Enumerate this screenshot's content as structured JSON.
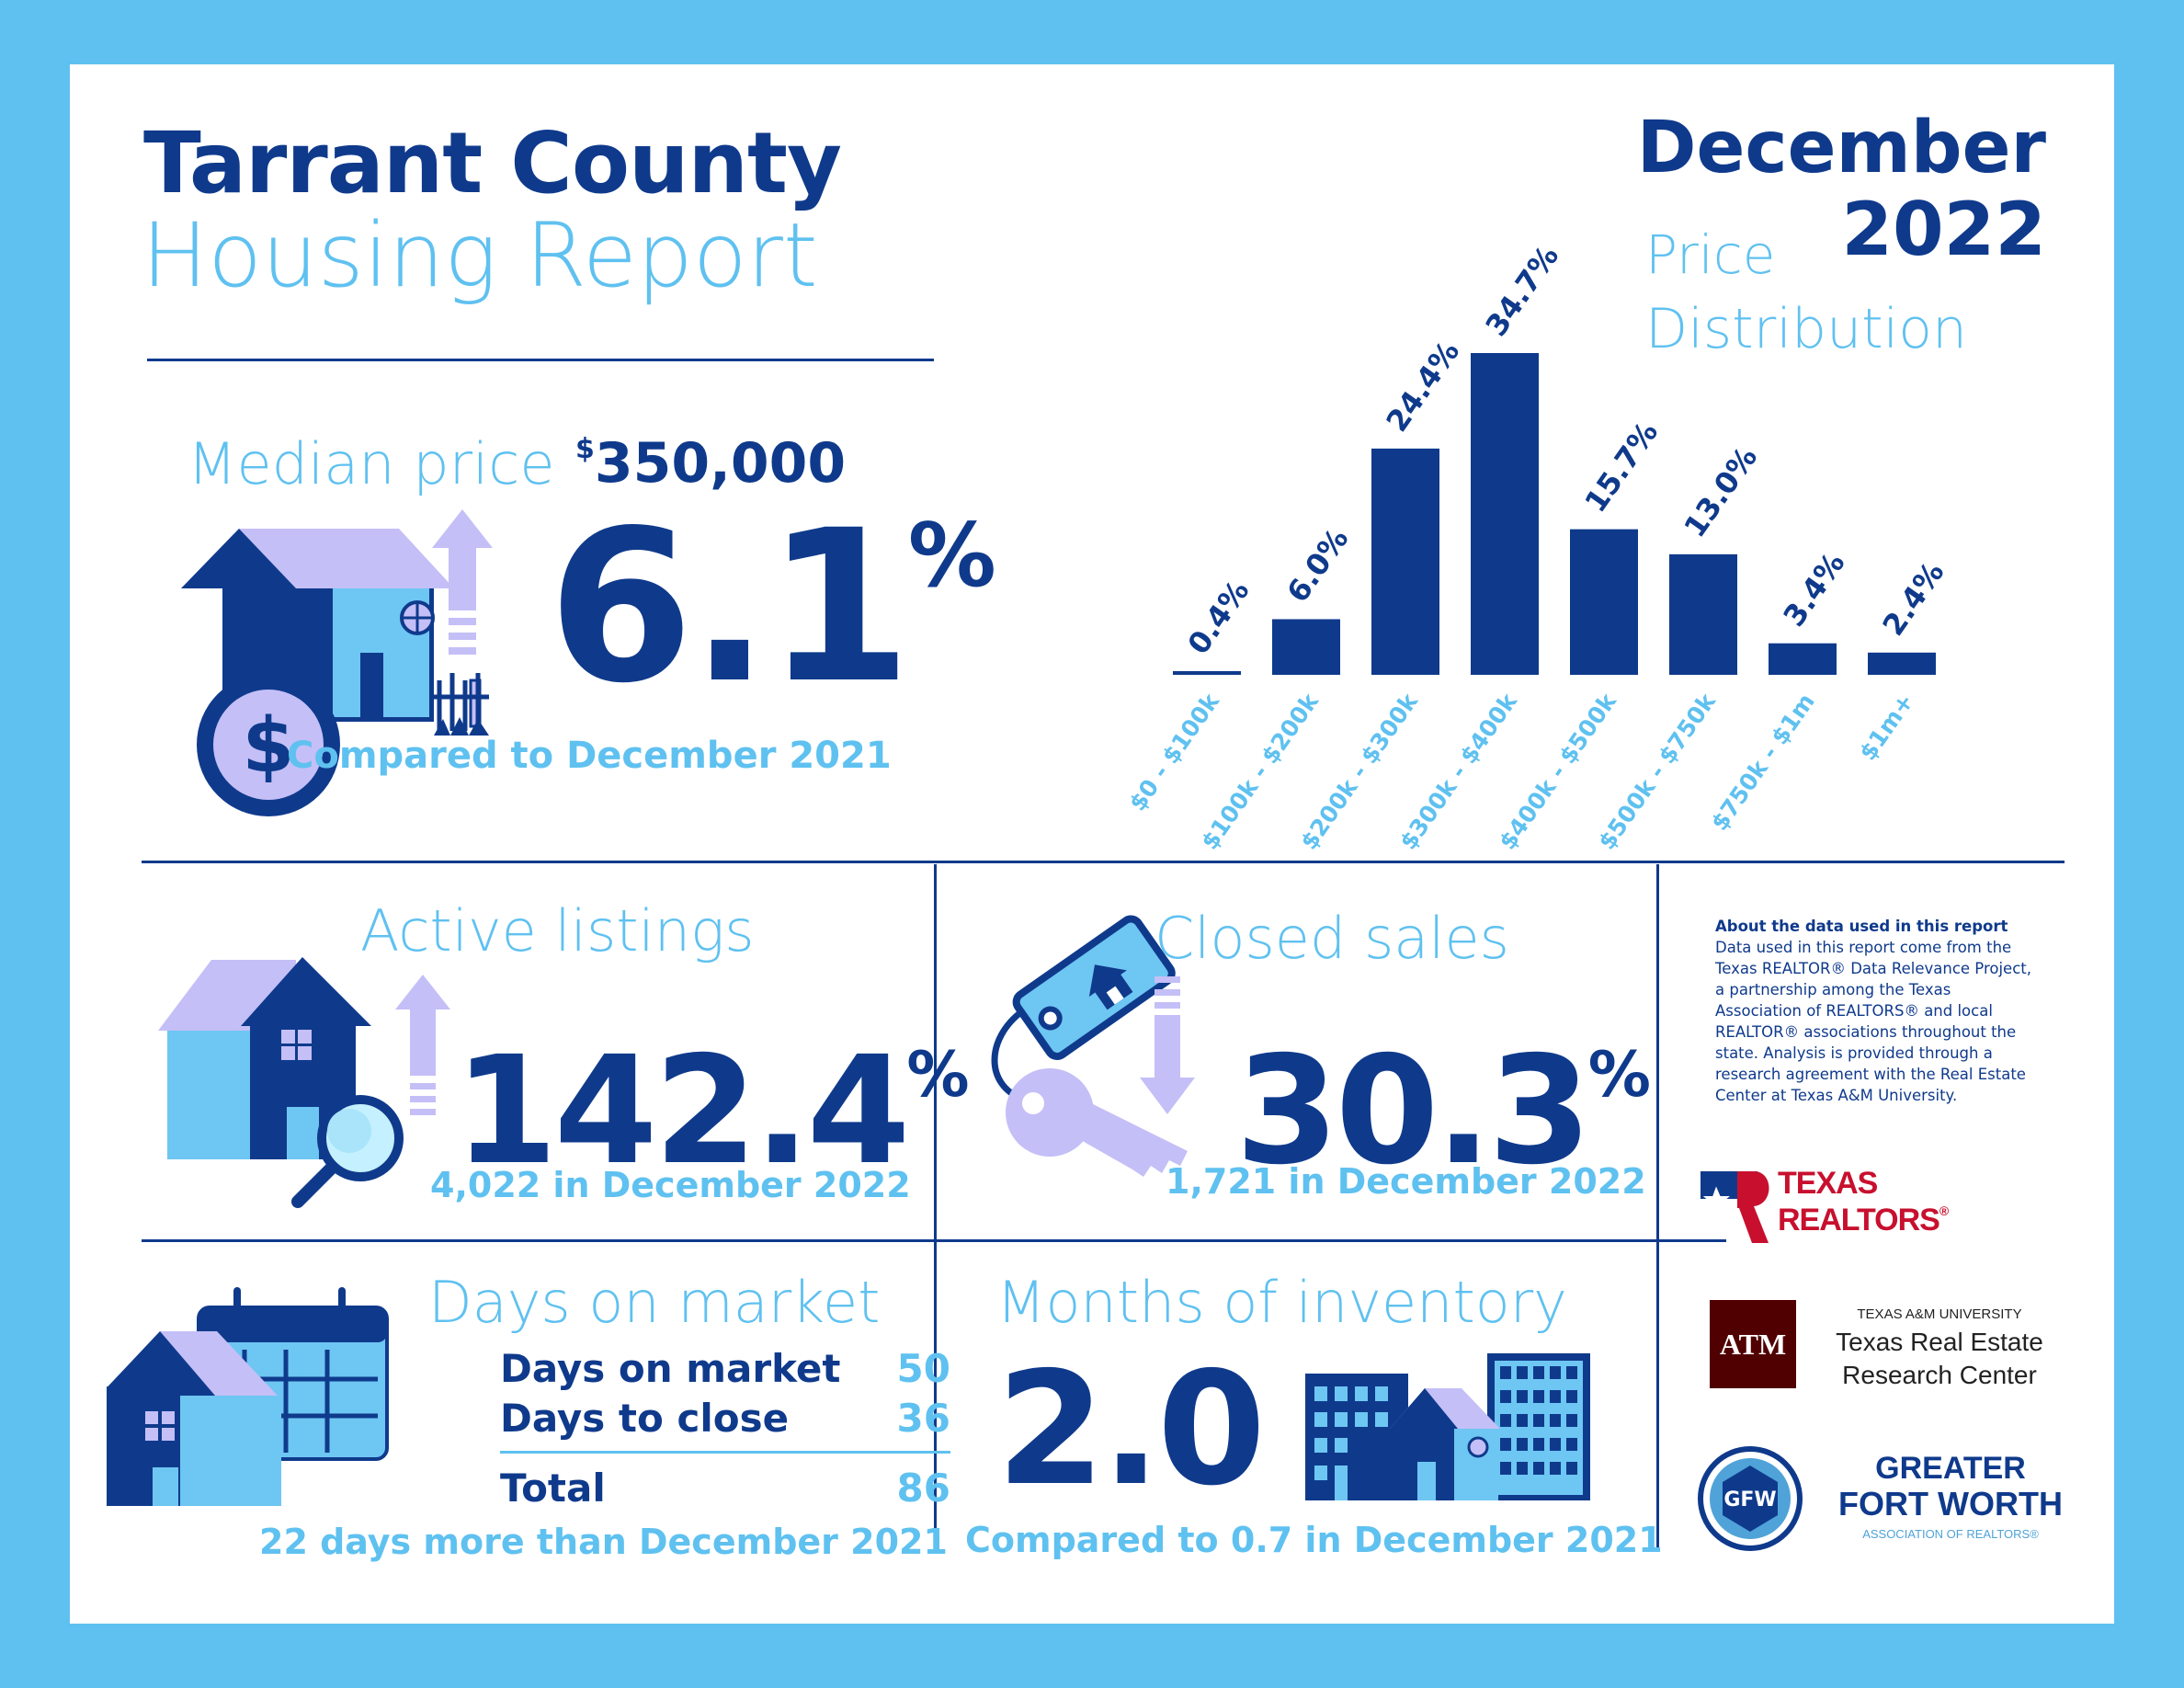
{
  "header": {
    "title_line1": "Tarrant County",
    "title_line2": "Housing Report",
    "month": "December",
    "year": "2022"
  },
  "median_price": {
    "label": "Median price",
    "dollar_sign": "$",
    "value": "350,000",
    "change": "6.1",
    "percent": "%",
    "direction": "up",
    "comparison": "Compared to December 2021"
  },
  "price_distribution": {
    "title_line1": "Price",
    "title_line2": "Distribution"
  },
  "chart_data": {
    "type": "bar",
    "title": "Price Distribution",
    "categories": [
      "$0 - $100k",
      "$100k - $200k",
      "$200k - $300k",
      "$300k - $400k",
      "$400k - $500k",
      "$500k - $750k",
      "$750k - $1m",
      "$1m+"
    ],
    "values": [
      0.4,
      6.0,
      24.4,
      34.7,
      15.7,
      13.0,
      3.4,
      2.4
    ],
    "value_labels": [
      "0.4%",
      "6.0%",
      "24.4%",
      "34.7%",
      "15.7%",
      "13.0%",
      "3.4%",
      "2.4%"
    ],
    "unit": "%",
    "ylim": [
      0,
      34.7
    ],
    "grid": false,
    "bar_color": "#0f3a8c"
  },
  "active_listings": {
    "label": "Active listings",
    "change": "142.4",
    "percent": "%",
    "direction": "up",
    "detail": "4,022 in December 2022"
  },
  "closed_sales": {
    "label": "Closed sales",
    "change": "30.3",
    "percent": "%",
    "direction": "down",
    "detail": "1,721 in December 2022"
  },
  "days_on_market": {
    "label": "Days on market",
    "rows": [
      {
        "label": "Days on market",
        "value": "50"
      },
      {
        "label": "Days to close",
        "value": "36"
      }
    ],
    "total_label": "Total",
    "total_value": "86",
    "comparison": "22 days more than December 2021"
  },
  "months_inventory": {
    "label": "Months of inventory",
    "value": "2.0",
    "comparison": "Compared to 0.7 in December 2021"
  },
  "about": {
    "heading": "About the data used in this report",
    "lines": [
      "Data used in this report come from the",
      "Texas REALTOR® Data Relevance Project,",
      "a partnership among the Texas",
      "Association of REALTORS® and local",
      "REALTOR® associations throughout the",
      "state. Analysis is provided through a",
      "research agreement with the Real Estate",
      "Center at Texas A&M University."
    ]
  },
  "logos": {
    "texas_realtors_line1": "TEXAS",
    "texas_realtors_line2": "REALTORS",
    "texas_realtors_mark": "®",
    "tamu_small": "TEXAS A&M UNIVERSITY",
    "tamu_line1": "Texas Real Estate",
    "tamu_line2": "Research Center",
    "tamu_mark": "ATM",
    "gfw_line1": "GREATER",
    "gfw_line2": "FORT WORTH",
    "gfw_line3": "ASSOCIATION OF REALTORS®",
    "gfw_mark": "GFW"
  },
  "colors": {
    "navy": "#0f3a8c",
    "light_blue": "#5fc1f0",
    "lavender": "#c4bff7",
    "sky": "#6ec6f2",
    "maroon": "#500000",
    "red": "#c8102e"
  },
  "icons": {
    "median": "house-with-dollar-coin-icon",
    "up_arrow": "arrow-up-icon",
    "down_arrow": "arrow-down-icon",
    "active": "house-with-magnifier-icon",
    "closed": "key-with-tag-icon",
    "dom": "calendar-with-house-icon",
    "inventory": "buildings-icon"
  }
}
